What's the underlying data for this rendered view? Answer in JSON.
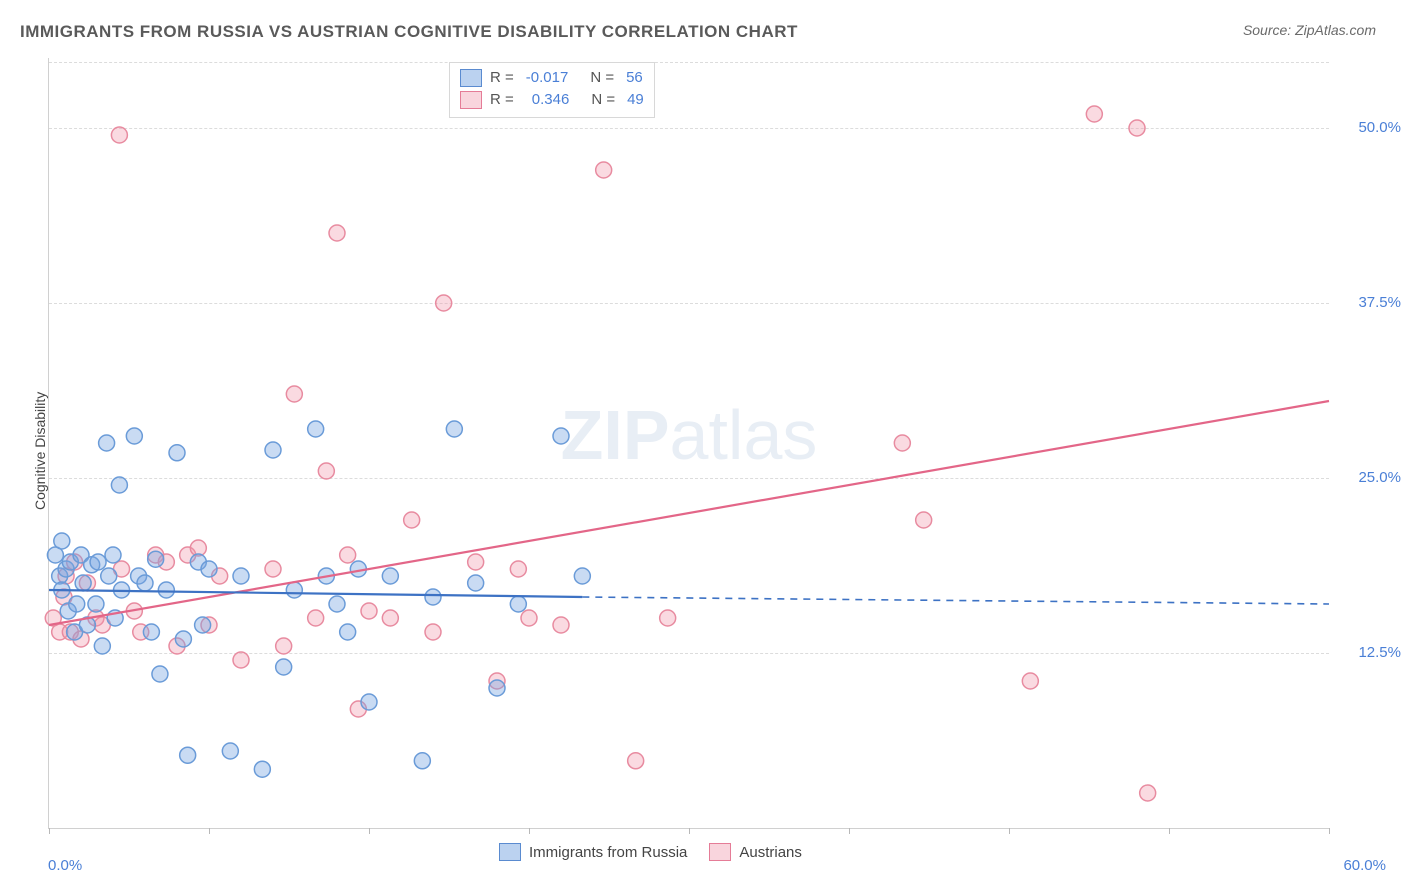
{
  "title": "IMMIGRANTS FROM RUSSIA VS AUSTRIAN COGNITIVE DISABILITY CORRELATION CHART",
  "source_label": "Source: ZipAtlas.com",
  "watermark": "ZIPatlas",
  "y_axis_label": "Cognitive Disability",
  "chart": {
    "type": "scatter",
    "xlim": [
      0,
      60
    ],
    "ylim": [
      0,
      55
    ],
    "ytick_values": [
      12.5,
      25.0,
      37.5,
      50.0
    ],
    "ytick_labels": [
      "12.5%",
      "25.0%",
      "37.5%",
      "50.0%"
    ],
    "xtick_values": [
      0,
      7.5,
      15,
      22.5,
      30,
      37.5,
      45,
      52.5,
      60
    ],
    "x_min_label": "0.0%",
    "x_max_label": "60.0%",
    "background_color": "#ffffff",
    "grid_color": "#dcdcdc",
    "axis_color": "#d0d0d0",
    "marker_radius": 8,
    "marker_stroke_width": 1.5,
    "series": [
      {
        "name": "Immigrants from Russia",
        "fill_color": "rgba(120,165,225,0.40)",
        "stroke_color": "#6a9bd8",
        "r_value": "-0.017",
        "n_value": "56",
        "regression": {
          "x1": 0,
          "y1": 17.0,
          "x2": 25,
          "y2": 16.5,
          "x2_ext": 60,
          "y2_ext": 16.0,
          "color": "#3d72c4",
          "width": 2.2
        },
        "points": [
          [
            0.3,
            19.5
          ],
          [
            0.5,
            18.0
          ],
          [
            0.6,
            20.5
          ],
          [
            0.6,
            17.0
          ],
          [
            0.8,
            18.5
          ],
          [
            0.9,
            15.5
          ],
          [
            1.0,
            19.0
          ],
          [
            1.2,
            14.0
          ],
          [
            1.3,
            16.0
          ],
          [
            1.5,
            19.5
          ],
          [
            1.6,
            17.5
          ],
          [
            1.8,
            14.5
          ],
          [
            2.0,
            18.8
          ],
          [
            2.2,
            16.0
          ],
          [
            2.3,
            19.0
          ],
          [
            2.5,
            13.0
          ],
          [
            2.7,
            27.5
          ],
          [
            2.8,
            18.0
          ],
          [
            3.0,
            19.5
          ],
          [
            3.1,
            15.0
          ],
          [
            3.3,
            24.5
          ],
          [
            3.4,
            17.0
          ],
          [
            4.0,
            28.0
          ],
          [
            4.2,
            18.0
          ],
          [
            4.5,
            17.5
          ],
          [
            4.8,
            14.0
          ],
          [
            5.0,
            19.2
          ],
          [
            5.2,
            11.0
          ],
          [
            5.5,
            17.0
          ],
          [
            6.0,
            26.8
          ],
          [
            6.3,
            13.5
          ],
          [
            6.5,
            5.2
          ],
          [
            7.0,
            19.0
          ],
          [
            7.2,
            14.5
          ],
          [
            7.5,
            18.5
          ],
          [
            8.5,
            5.5
          ],
          [
            9.0,
            18.0
          ],
          [
            10.0,
            4.2
          ],
          [
            10.5,
            27.0
          ],
          [
            11.0,
            11.5
          ],
          [
            11.5,
            17.0
          ],
          [
            12.5,
            28.5
          ],
          [
            13.0,
            18.0
          ],
          [
            13.5,
            16.0
          ],
          [
            14.0,
            14.0
          ],
          [
            14.5,
            18.5
          ],
          [
            15.0,
            9.0
          ],
          [
            16.0,
            18.0
          ],
          [
            17.5,
            4.8
          ],
          [
            18.0,
            16.5
          ],
          [
            19.0,
            28.5
          ],
          [
            20.0,
            17.5
          ],
          [
            21.0,
            10.0
          ],
          [
            22.0,
            16.0
          ],
          [
            24.0,
            28.0
          ],
          [
            25.0,
            18.0
          ]
        ]
      },
      {
        "name": "Austrians",
        "fill_color": "rgba(240,150,170,0.35)",
        "stroke_color": "#e88ba0",
        "r_value": "0.346",
        "n_value": "49",
        "regression": {
          "x1": 0,
          "y1": 14.5,
          "x2": 60,
          "y2": 30.5,
          "color": "#e36688",
          "width": 2.2
        },
        "points": [
          [
            0.2,
            15.0
          ],
          [
            0.5,
            14.0
          ],
          [
            0.7,
            16.5
          ],
          [
            0.8,
            18.0
          ],
          [
            1.0,
            14.0
          ],
          [
            1.2,
            19.0
          ],
          [
            1.5,
            13.5
          ],
          [
            1.8,
            17.5
          ],
          [
            2.2,
            15.0
          ],
          [
            2.5,
            14.5
          ],
          [
            3.3,
            49.5
          ],
          [
            3.4,
            18.5
          ],
          [
            4.0,
            15.5
          ],
          [
            4.3,
            14.0
          ],
          [
            5.0,
            19.5
          ],
          [
            5.5,
            19.0
          ],
          [
            6.0,
            13.0
          ],
          [
            6.5,
            19.5
          ],
          [
            7.0,
            20.0
          ],
          [
            7.5,
            14.5
          ],
          [
            8.0,
            18.0
          ],
          [
            9.0,
            12.0
          ],
          [
            10.5,
            18.5
          ],
          [
            11.0,
            13.0
          ],
          [
            11.5,
            31.0
          ],
          [
            12.5,
            15.0
          ],
          [
            13.0,
            25.5
          ],
          [
            13.5,
            42.5
          ],
          [
            14.0,
            19.5
          ],
          [
            14.5,
            8.5
          ],
          [
            15.0,
            15.5
          ],
          [
            16.0,
            15.0
          ],
          [
            17.0,
            22.0
          ],
          [
            18.0,
            14.0
          ],
          [
            18.5,
            37.5
          ],
          [
            20.0,
            19.0
          ],
          [
            21.0,
            10.5
          ],
          [
            22.0,
            18.5
          ],
          [
            22.5,
            15.0
          ],
          [
            24.0,
            14.5
          ],
          [
            26.0,
            47.0
          ],
          [
            27.5,
            4.8
          ],
          [
            29.0,
            15.0
          ],
          [
            40.0,
            27.5
          ],
          [
            41.0,
            22.0
          ],
          [
            46.0,
            10.5
          ],
          [
            49.0,
            51.0
          ],
          [
            51.0,
            50.0
          ],
          [
            51.5,
            2.5
          ]
        ]
      }
    ]
  },
  "legend_top_label_R": "R =",
  "legend_top_label_N": "N =",
  "legend_bottom": {
    "series1_label": "Immigrants from Russia",
    "series2_label": "Austrians"
  },
  "colors": {
    "tick_label": "#4a7fd6",
    "text_dark": "#555555"
  }
}
